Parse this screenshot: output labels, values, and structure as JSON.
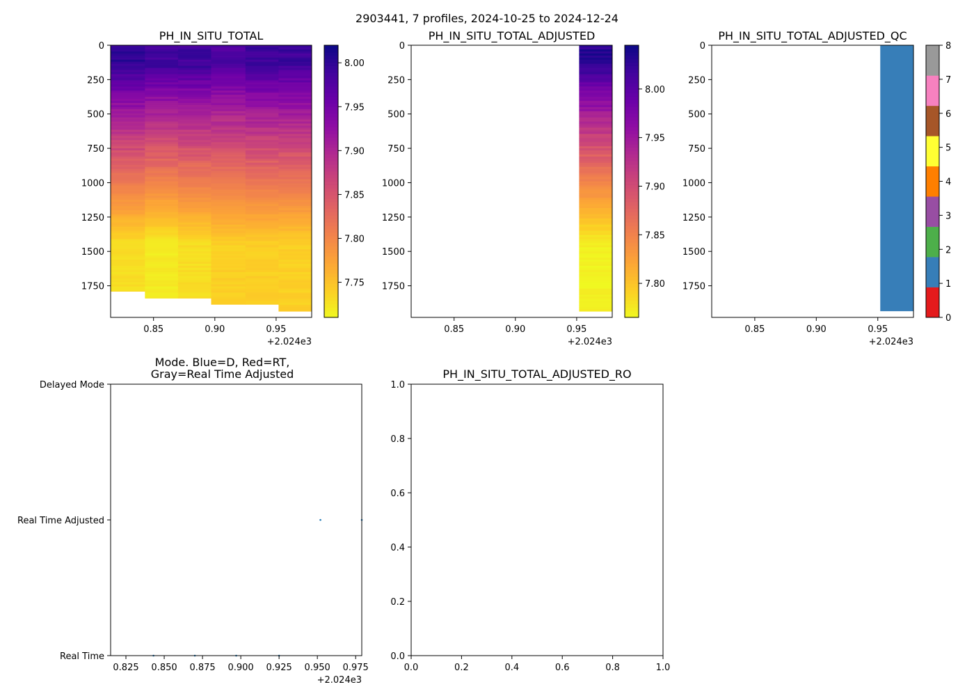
{
  "figure_title": "2903441, 7 profiles, 2024-10-25 to 2024-12-24",
  "chart_data": [
    {
      "type": "heatmap",
      "title": "PH_IN_SITU_TOTAL",
      "xlim": [
        0.815,
        0.979
      ],
      "ylim": [
        1980,
        0
      ],
      "xticks": [
        0.85,
        0.9,
        0.95
      ],
      "xticklabels": [
        "0.85",
        "0.90",
        "0.95"
      ],
      "x_offset_label": "+2.024e3",
      "yticks": [
        0,
        250,
        500,
        750,
        1000,
        1250,
        1500,
        1750
      ],
      "yticklabels": [
        "0",
        "250",
        "500",
        "750",
        "1000",
        "1250",
        "1500",
        "1750"
      ],
      "colormap": "plasma_r",
      "vmin": 7.71,
      "vmax": 8.02,
      "colorbar_ticks": [
        7.75,
        7.8,
        7.85,
        7.9,
        7.95,
        8.0
      ],
      "colorbar_ticklabels": [
        "7.75",
        "7.80",
        "7.85",
        "7.90",
        "7.95",
        "8.00"
      ],
      "profiles": [
        {
          "x0": 0.815,
          "x1": 0.843,
          "max_depth": 1790,
          "surface": 8.0,
          "deep": 7.73
        },
        {
          "x0": 0.843,
          "x1": 0.87,
          "max_depth": 1840,
          "surface": 7.99,
          "deep": 7.72
        },
        {
          "x0": 0.87,
          "x1": 0.897,
          "max_depth": 1840,
          "surface": 7.99,
          "deep": 7.73
        },
        {
          "x0": 0.897,
          "x1": 0.925,
          "max_depth": 1885,
          "surface": 7.98,
          "deep": 7.74
        },
        {
          "x0": 0.925,
          "x1": 0.952,
          "max_depth": 1885,
          "surface": 7.99,
          "deep": 7.74
        },
        {
          "x0": 0.952,
          "x1": 0.979,
          "max_depth": 1935,
          "surface": 7.99,
          "deep": 7.74
        }
      ]
    },
    {
      "type": "heatmap",
      "title": "PH_IN_SITU_TOTAL_ADJUSTED",
      "xlim": [
        0.815,
        0.979
      ],
      "ylim": [
        1980,
        0
      ],
      "xticks": [
        0.85,
        0.9,
        0.95
      ],
      "xticklabels": [
        "0.85",
        "0.90",
        "0.95"
      ],
      "x_offset_label": "+2.024e3",
      "yticks": [
        0,
        250,
        500,
        750,
        1000,
        1250,
        1500,
        1750
      ],
      "yticklabels": [
        "0",
        "250",
        "500",
        "750",
        "1000",
        "1250",
        "1500",
        "1750"
      ],
      "colormap": "plasma_r",
      "vmin": 7.765,
      "vmax": 8.045,
      "colorbar_ticks": [
        7.8,
        7.85,
        7.9,
        7.95,
        8.0
      ],
      "colorbar_ticklabels": [
        "7.80",
        "7.85",
        "7.90",
        "7.95",
        "8.00"
      ],
      "profiles": [
        {
          "x0": 0.952,
          "x1": 0.979,
          "max_depth": 1935,
          "surface": 8.03,
          "deep": 7.77
        }
      ]
    },
    {
      "type": "heatmap",
      "title": "PH_IN_SITU_TOTAL_ADJUSTED_QC",
      "xlim": [
        0.815,
        0.979
      ],
      "ylim": [
        1980,
        0
      ],
      "xticks": [
        0.85,
        0.9,
        0.95
      ],
      "xticklabels": [
        "0.85",
        "0.90",
        "0.95"
      ],
      "x_offset_label": "+2.024e3",
      "yticks": [
        0,
        250,
        500,
        750,
        1000,
        1250,
        1500,
        1750
      ],
      "yticklabels": [
        "0",
        "250",
        "500",
        "750",
        "1000",
        "1250",
        "1500",
        "1750"
      ],
      "categorical_colors": [
        "#e41a1c",
        "#377eb8",
        "#4daf4a",
        "#984ea3",
        "#ff7f00",
        "#ffff33",
        "#a65628",
        "#f781bf",
        "#999999"
      ],
      "colorbar_ticks": [
        0,
        1,
        2,
        3,
        4,
        5,
        6,
        7,
        8
      ],
      "colorbar_ticklabels": [
        "0",
        "1",
        "2",
        "3",
        "4",
        "5",
        "6",
        "7",
        "8"
      ],
      "profiles": [
        {
          "x0": 0.952,
          "x1": 0.979,
          "max_depth": 1935,
          "qc": 1
        }
      ]
    },
    {
      "type": "scatter",
      "title_lines": [
        "Mode. Blue=D, Red=RT,",
        "Gray=Real Time Adjusted"
      ],
      "xlim": [
        0.815,
        0.979
      ],
      "ylim": [
        0,
        2
      ],
      "xticks": [
        0.825,
        0.85,
        0.875,
        0.9,
        0.925,
        0.95,
        0.975
      ],
      "xticklabels": [
        "0.825",
        "0.850",
        "0.875",
        "0.900",
        "0.925",
        "0.950",
        "0.975"
      ],
      "x_offset_label": "+2.024e3",
      "yticks": [
        0,
        1,
        2
      ],
      "yticklabels": [
        "Real Time",
        "Real Time Adjusted",
        "Delayed Mode"
      ],
      "point_color": "#1f77b4",
      "points": [
        {
          "x": 0.843,
          "y": 0
        },
        {
          "x": 0.87,
          "y": 0
        },
        {
          "x": 0.897,
          "y": 0
        },
        {
          "x": 0.925,
          "y": 0
        },
        {
          "x": 0.952,
          "y": 1
        },
        {
          "x": 0.979,
          "y": 1
        }
      ]
    },
    {
      "type": "scatter",
      "title": "PH_IN_SITU_TOTAL_ADJUSTED_RO",
      "xlim": [
        0,
        1
      ],
      "ylim": [
        0,
        1
      ],
      "xticks": [
        0,
        0.2,
        0.4,
        0.6,
        0.8,
        1.0
      ],
      "xticklabels": [
        "0.0",
        "0.2",
        "0.4",
        "0.6",
        "0.8",
        "1.0"
      ],
      "yticks": [
        0,
        0.2,
        0.4,
        0.6,
        0.8,
        1.0
      ],
      "yticklabels": [
        "0.0",
        "0.2",
        "0.4",
        "0.6",
        "0.8",
        "1.0"
      ],
      "points": []
    }
  ]
}
